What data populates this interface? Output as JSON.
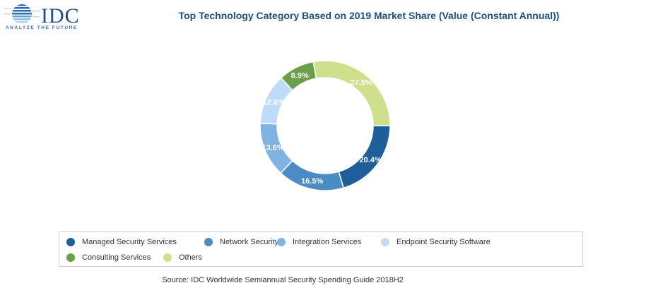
{
  "logo": {
    "text": "IDC",
    "tagline": "ANALYZE THE FUTURE"
  },
  "chart_data": {
    "type": "pie",
    "variant": "donut",
    "title": "Top Technology Category Based on 2019 Market Share (Value (Constant Annual))",
    "categories": [
      "Managed Security Services",
      "Network Security",
      "Integration Services",
      "Endpoint Security Software",
      "Consulting Services",
      "Others"
    ],
    "values": [
      20.4,
      16.5,
      13.6,
      12.6,
      8.9,
      27.9
    ],
    "labels": [
      "20.4%",
      "16.5%",
      "13.6%",
      "12.6%",
      "8.9%",
      "27.9%"
    ],
    "colors": [
      "#1d5e9b",
      "#4a8cc3",
      "#80b3df",
      "#bedcf9",
      "#6b9f4c",
      "#cfe08c"
    ],
    "legend_position": "bottom",
    "source": "Source: IDC Worldwide Semiannual Security Spending Guide 2018H2"
  }
}
